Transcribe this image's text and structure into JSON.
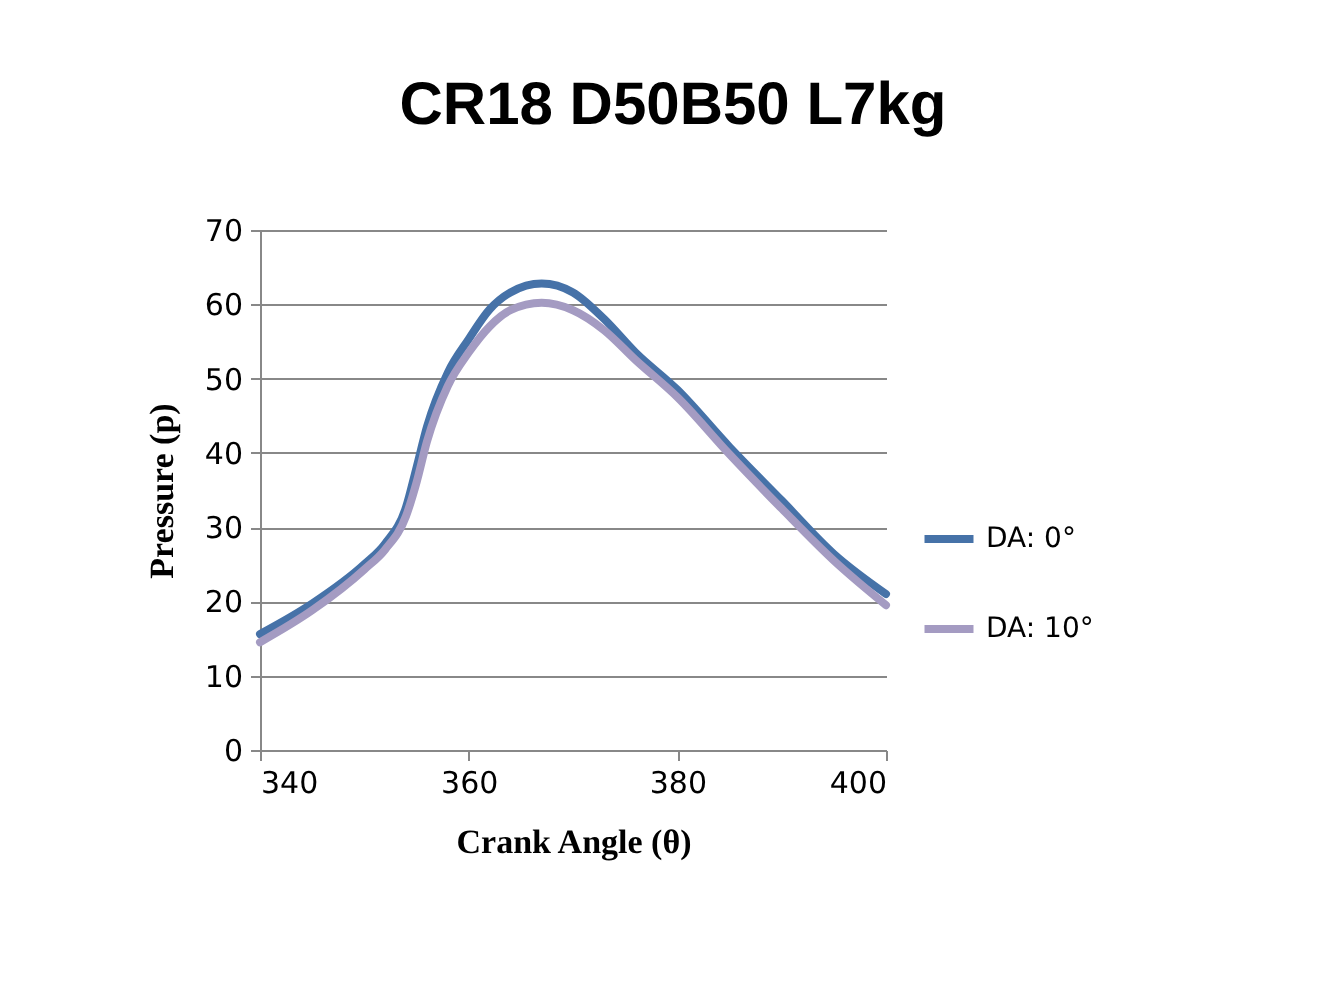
{
  "chart_data": {
    "type": "line",
    "title": "CR18 D50B50 L7kg",
    "xlabel": "Crank Angle (θ)",
    "ylabel": "Pressure (p)",
    "x": [
      340,
      345,
      350,
      352,
      354,
      355,
      356,
      358,
      360,
      362,
      364,
      367,
      370,
      373,
      376,
      380,
      385,
      390,
      395,
      400
    ],
    "series": [
      {
        "name": "DA: 0°",
        "color": "#4672a8",
        "values": [
          15.6,
          19.7,
          25,
          27.8,
          32.7,
          38,
          43.5,
          50.8,
          55.3,
          59.3,
          61.6,
          62.8,
          61.6,
          58,
          53.5,
          48.5,
          40.8,
          33.6,
          26.4,
          21
        ]
      },
      {
        "name": "DA: 10°",
        "color": "#a49bc2",
        "values": [
          14.5,
          18.8,
          24.3,
          27,
          31.5,
          36,
          41.5,
          49,
          53.5,
          57,
          59.2,
          60.2,
          59.2,
          56.5,
          52.5,
          47.5,
          39.8,
          32.5,
          25.5,
          19.5
        ]
      }
    ],
    "xlim": [
      340,
      400
    ],
    "xticks": [
      340,
      360,
      380,
      400
    ],
    "ylim": [
      0,
      70
    ],
    "yticks": [
      0,
      10,
      20,
      30,
      40,
      50,
      60,
      70
    ],
    "grid": "y",
    "legend": "right",
    "marker": "none",
    "line_style": "solid"
  }
}
